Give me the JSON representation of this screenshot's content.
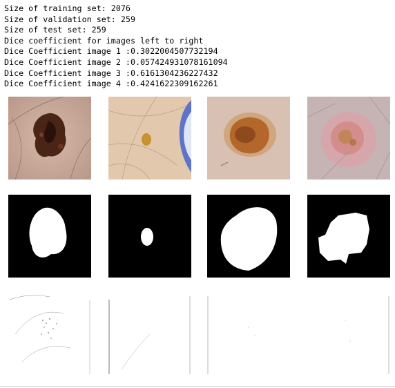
{
  "output": {
    "lines": [
      "Size of training set: 2076",
      "Size of validation set: 259",
      "Size of test set: 259",
      "Dice coefficient for images left to right",
      "Dice Coefficient image 1 :0.3022004507732194",
      "Dice Coefficient image 2 :0.057424931078161094",
      "Dice Coefficient image 3 :0.6161304236227432",
      "Dice Coefficient image 4 :0.4241622309162261"
    ]
  },
  "figure": {
    "rows": [
      "input-image",
      "ground-truth-mask",
      "predicted-mask"
    ],
    "columns": 4
  }
}
